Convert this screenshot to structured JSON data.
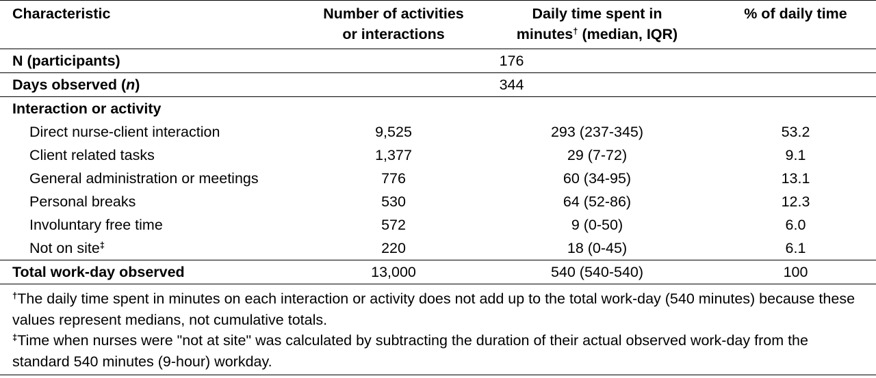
{
  "header": {
    "col1": "Characteristic",
    "col2_line1": "Number of activities",
    "col2_line2": "or interactions",
    "col3_line1": "Daily time spent in",
    "col3_line2a": "minutes",
    "col3_dagger": "†",
    "col3_line2b": " (median, IQR)",
    "col4": "% of daily time"
  },
  "summary": {
    "n_label": "N (participants)",
    "n_value": "176",
    "days_label_a": "Days observed (",
    "days_label_n": "n",
    "days_label_b": ")",
    "days_value": "344",
    "section_label": "Interaction or activity"
  },
  "rows": [
    {
      "label": "Direct nurse-client interaction",
      "count": "9,525",
      "minutes": "293 (237-345)",
      "pct": "53.2"
    },
    {
      "label": "Client related tasks",
      "count": "1,377",
      "minutes": "29 (7-72)",
      "pct": "9.1"
    },
    {
      "label": "General administration or meetings",
      "count": "776",
      "minutes": "60 (34-95)",
      "pct": "13.1"
    },
    {
      "label": "Personal breaks",
      "count": "530",
      "minutes": "64 (52-86)",
      "pct": "12.3"
    },
    {
      "label": "Involuntary free time",
      "count": "572",
      "minutes": "9 (0-50)",
      "pct": "6.0"
    },
    {
      "label": "Not on site",
      "label_mark": "‡",
      "count": "220",
      "minutes": "18 (0-45)",
      "pct": "6.1"
    }
  ],
  "total": {
    "label": "Total work-day observed",
    "count": "13,000",
    "minutes": "540 (540-540)",
    "pct": "100"
  },
  "footnotes": {
    "fn1_mark": "†",
    "fn1_text": "The daily time spent in minutes on each interaction or activity does not add up to the total work-day (540 minutes) because these values represent medians, not cumulative totals.",
    "fn2_mark": "‡",
    "fn2_text": "Time when nurses were \"not at site\" was calculated by subtracting the duration of their actual observed work-day from the standard 540 minutes (9-hour) workday."
  }
}
